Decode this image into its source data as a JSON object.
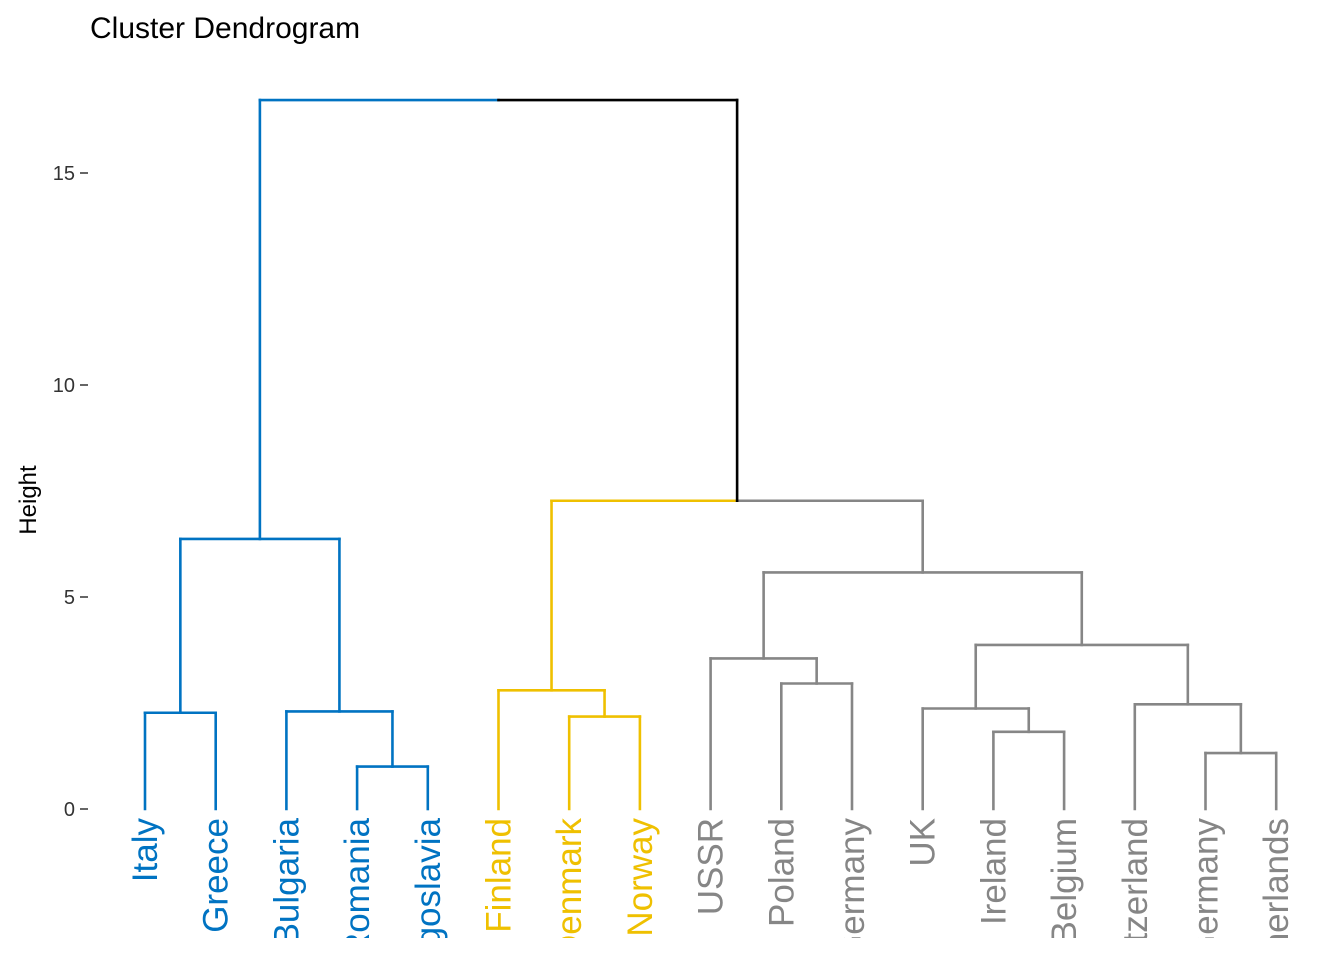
{
  "title": "Cluster Dendrogram",
  "chart_data": {
    "type": "dendrogram",
    "title": "Cluster Dendrogram",
    "ylabel": "Height",
    "ylim": [
      0,
      17
    ],
    "yticks": [
      0,
      5,
      10,
      15
    ],
    "colors": {
      "blue": "#0073C2",
      "yellow": "#EFC000",
      "gray": "#868686",
      "root": "#000000"
    },
    "leaves": [
      {
        "label": "Italy",
        "color": "blue"
      },
      {
        "label": "Greece",
        "color": "blue"
      },
      {
        "label": "Bulgaria",
        "color": "blue"
      },
      {
        "label": "Romania",
        "color": "blue"
      },
      {
        "label": "Yugoslavia",
        "color": "blue"
      },
      {
        "label": "Finland",
        "color": "yellow"
      },
      {
        "label": "Denmark",
        "color": "yellow"
      },
      {
        "label": "Norway",
        "color": "yellow"
      },
      {
        "label": "USSR",
        "color": "gray"
      },
      {
        "label": "Poland",
        "color": "gray"
      },
      {
        "label": "E Germany",
        "color": "gray"
      },
      {
        "label": "UK",
        "color": "gray"
      },
      {
        "label": "Ireland",
        "color": "gray"
      },
      {
        "label": "Belgium",
        "color": "gray"
      },
      {
        "label": "Switzerland",
        "color": "gray"
      },
      {
        "label": "W Germany",
        "color": "gray"
      },
      {
        "label": "Netherlands",
        "color": "gray"
      }
    ],
    "merges": [
      {
        "id": "m1",
        "left": "L0",
        "right": "L1",
        "height": 2.27,
        "color": "blue"
      },
      {
        "id": "m2",
        "left": "L3",
        "right": "L4",
        "height": 1.0,
        "color": "blue"
      },
      {
        "id": "m3",
        "left": "L2",
        "right": "m2",
        "height": 2.3,
        "color": "blue"
      },
      {
        "id": "m4",
        "left": "m1",
        "right": "m3",
        "height": 6.37,
        "color": "blue"
      },
      {
        "id": "m5",
        "left": "L6",
        "right": "L7",
        "height": 2.18,
        "color": "yellow"
      },
      {
        "id": "m6",
        "left": "L5",
        "right": "m5",
        "height": 2.8,
        "color": "yellow"
      },
      {
        "id": "m7",
        "left": "L9",
        "right": "L10",
        "height": 2.96,
        "color": "gray"
      },
      {
        "id": "m8",
        "left": "L8",
        "right": "m7",
        "height": 3.55,
        "color": "gray"
      },
      {
        "id": "m9",
        "left": "L12",
        "right": "L13",
        "height": 1.82,
        "color": "gray"
      },
      {
        "id": "m10",
        "left": "L11",
        "right": "m9",
        "height": 2.37,
        "color": "gray"
      },
      {
        "id": "m11",
        "left": "L15",
        "right": "L16",
        "height": 1.32,
        "color": "gray"
      },
      {
        "id": "m12",
        "left": "L14",
        "right": "m11",
        "height": 2.47,
        "color": "gray"
      },
      {
        "id": "m13",
        "left": "m10",
        "right": "m12",
        "height": 3.87,
        "color": "gray"
      },
      {
        "id": "m14",
        "left": "m8",
        "right": "m13",
        "height": 5.58,
        "color": "gray"
      },
      {
        "id": "m15",
        "left": "m6",
        "right": "m14",
        "height": 7.27,
        "color": "mixed"
      },
      {
        "id": "m16",
        "left": "m4",
        "right": "m15",
        "height": 16.72,
        "color": "root"
      }
    ]
  }
}
